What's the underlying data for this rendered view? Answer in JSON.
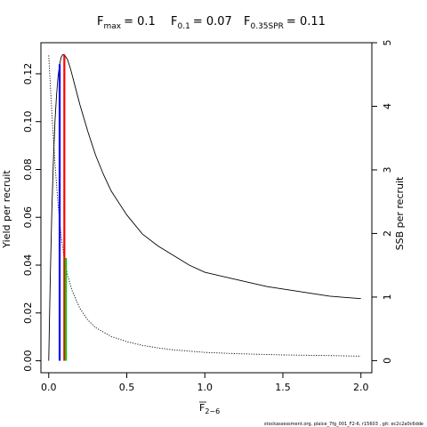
{
  "title": {
    "fmax_label": "F",
    "fmax_sub": "max",
    "fmax_value": "= 0.1",
    "f01_label": "F",
    "f01_sub": "0.1",
    "f01_value": "= 0.07",
    "fspr_label": "F",
    "fspr_sub": "0.35SPR",
    "fspr_value": "= 0.11"
  },
  "footer_text": "stockassessment.org, plaice_7fg_001_F2-6, r15603 , git: ec2c2a0c6dde",
  "chart_data": {
    "type": "line",
    "xlabel_main": "F",
    "xlabel_sub": "2−6",
    "ylabel_left": "Yield per recruit",
    "ylabel_right": "SSB per recruit",
    "xlim": [
      -0.05,
      2.07
    ],
    "ylim_left": [
      -0.005,
      0.133
    ],
    "ylim_right": [
      -0.19,
      5.0
    ],
    "x_ticks": [
      0,
      0.5,
      1,
      1.5,
      2
    ],
    "x_tick_labels": [
      "0.0",
      "0.5",
      "1.0",
      "1.5",
      "2.0"
    ],
    "yleft_ticks": [
      0,
      0.02,
      0.04,
      0.06,
      0.08,
      0.1,
      0.12
    ],
    "yleft_tick_labels": [
      "0.00",
      "0.02",
      "0.04",
      "0.06",
      "0.08",
      "0.10",
      "0.12"
    ],
    "yright_ticks": [
      0,
      1,
      2,
      3,
      4,
      5
    ],
    "yright_tick_labels": [
      "0",
      "1",
      "2",
      "3",
      "4",
      "5"
    ],
    "series": [
      {
        "axis": "left",
        "style": "solid",
        "color": "#000000",
        "x": [
          0,
          0.01,
          0.02,
          0.03,
          0.04,
          0.05,
          0.06,
          0.07,
          0.08,
          0.09,
          0.1,
          0.12,
          0.14,
          0.16,
          0.18,
          0.2,
          0.25,
          0.3,
          0.35,
          0.4,
          0.5,
          0.6,
          0.7,
          0.8,
          0.9,
          1.0,
          1.2,
          1.4,
          1.6,
          1.8,
          2.0
        ],
        "y": [
          0,
          0.035,
          0.063,
          0.084,
          0.1,
          0.111,
          0.119,
          0.124,
          0.127,
          0.128,
          0.128,
          0.126,
          0.122,
          0.117,
          0.112,
          0.107,
          0.096,
          0.086,
          0.078,
          0.071,
          0.061,
          0.053,
          0.048,
          0.044,
          0.04,
          0.037,
          0.034,
          0.031,
          0.029,
          0.027,
          0.026
        ]
      },
      {
        "axis": "right",
        "style": "dotted",
        "color": "#000000",
        "x": [
          0,
          0.02,
          0.04,
          0.06,
          0.08,
          0.1,
          0.12,
          0.15,
          0.2,
          0.25,
          0.3,
          0.4,
          0.5,
          0.6,
          0.7,
          0.8,
          1.0,
          1.2,
          1.5,
          1.8,
          2.0
        ],
        "y": [
          4.8,
          3.9,
          3.1,
          2.45,
          1.95,
          1.6,
          1.35,
          1.1,
          0.82,
          0.64,
          0.52,
          0.38,
          0.3,
          0.24,
          0.2,
          0.17,
          0.13,
          0.11,
          0.09,
          0.08,
          0.07
        ]
      }
    ],
    "reference_lines": [
      {
        "x": 0.1,
        "y0": 0,
        "y1": 0.128,
        "color": "#ff0000"
      },
      {
        "x": 0.07,
        "y0": 0,
        "y1": 0.124,
        "color": "#0000ff"
      },
      {
        "x": 0.11,
        "y0": 0,
        "y1": 0.043,
        "color": "#00cc00"
      }
    ]
  }
}
